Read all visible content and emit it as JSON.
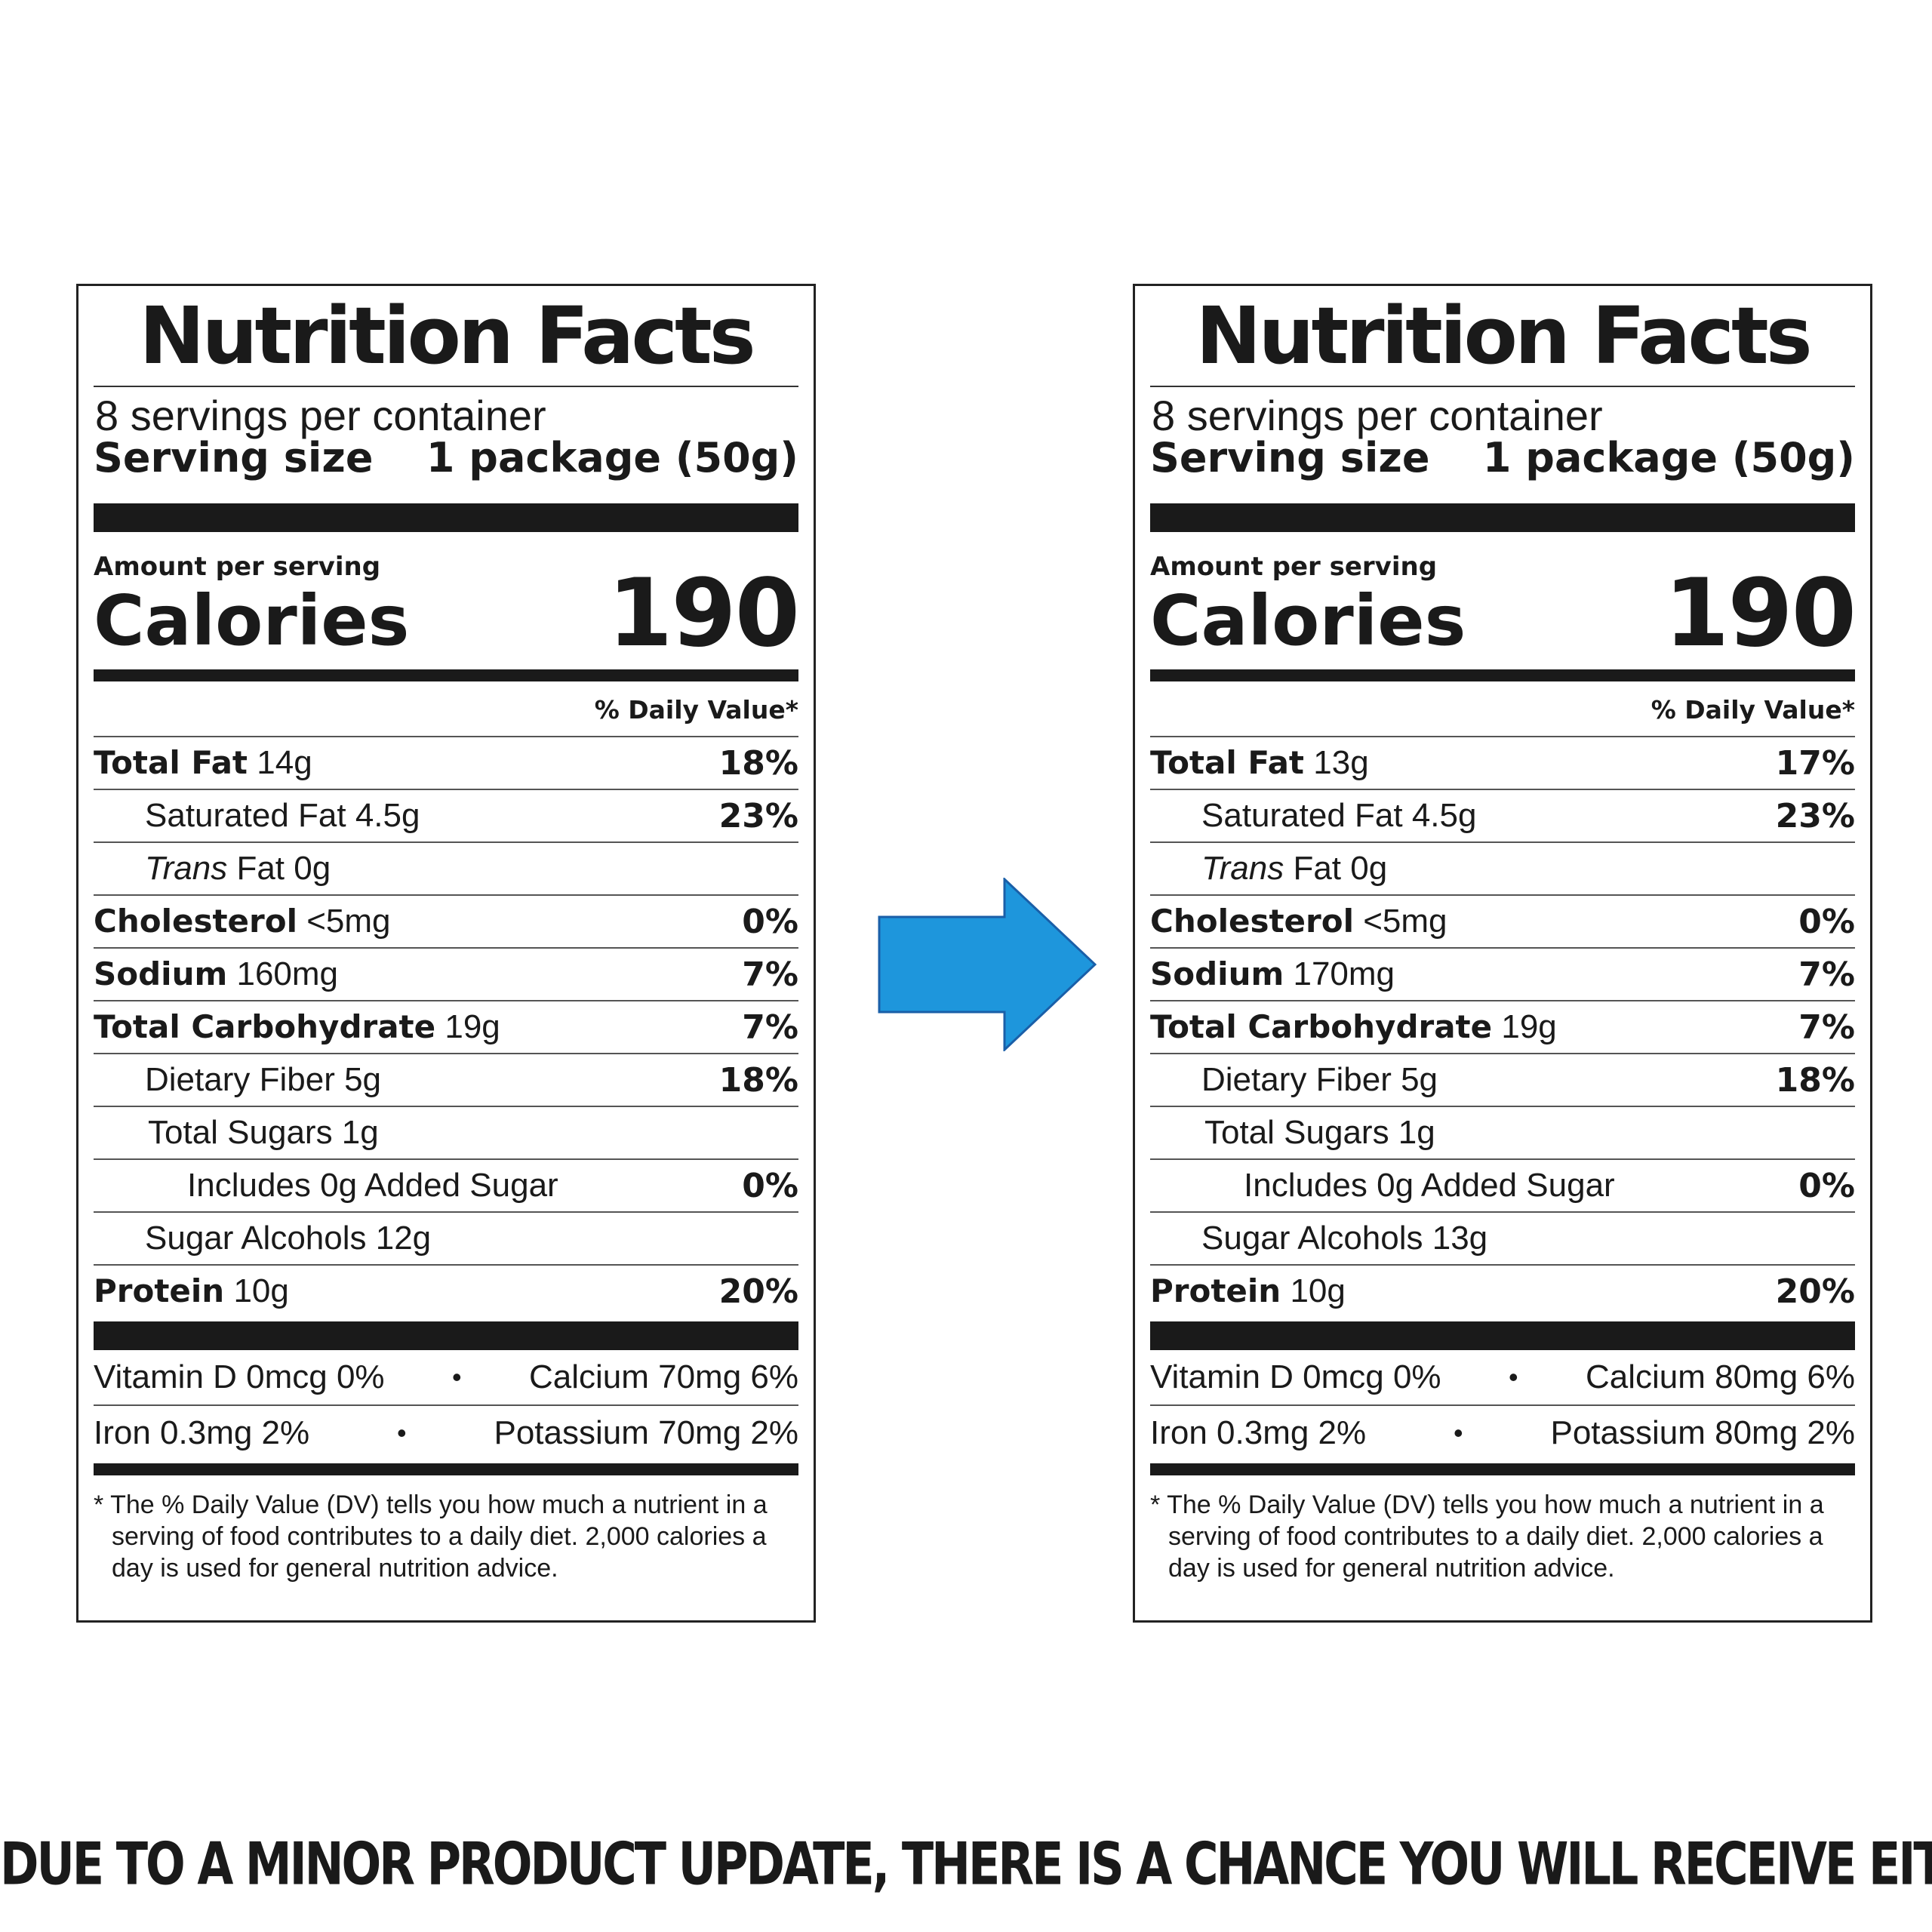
{
  "labels": [
    {
      "title": "Nutrition Facts",
      "servings_per_container": "8 servings per container",
      "serving_size_label": "Serving size",
      "serving_size_value": "1 package (50g)",
      "amount_per_serving": "Amount per serving",
      "calories_label": "Calories",
      "calories_value": "190",
      "daily_value_header": "% Daily Value*",
      "nutrients": [
        {
          "name": "Total Fat",
          "amount": "14g",
          "dv": "18%"
        },
        {
          "name": "Saturated Fat 4.5g",
          "amount": "",
          "dv": "23%"
        },
        {
          "name_italic": "Trans",
          "name": " Fat 0g",
          "amount": "",
          "dv": ""
        },
        {
          "name": "Cholesterol",
          "amount": "<5mg",
          "dv": "0%"
        },
        {
          "name": "Sodium",
          "amount": "160mg",
          "dv": "7%"
        },
        {
          "name": "Total Carbohydrate",
          "amount": "19g",
          "dv": "7%"
        },
        {
          "name": "Dietary Fiber 5g",
          "amount": "",
          "dv": "18%"
        },
        {
          "name": "Total Sugars 1g",
          "amount": "",
          "dv": ""
        },
        {
          "name": "Includes 0g Added Sugar",
          "amount": "",
          "dv": "0%"
        },
        {
          "name": "Sugar Alcohols 12g",
          "amount": "",
          "dv": ""
        },
        {
          "name": "Protein",
          "amount": "10g",
          "dv": "20%"
        }
      ],
      "vitamins": [
        {
          "left": "Vitamin D 0mcg 0%",
          "bullet": "•",
          "right": "Calcium 70mg 6%"
        },
        {
          "left": "Iron 0.3mg 2%",
          "bullet": "•",
          "right": "Potassium 70mg 2%"
        }
      ],
      "footnote": "* The % Daily Value (DV) tells you how much a nutrient in a serving of food contributes to a daily diet. 2,000 calories a day is used for general nutrition advice."
    },
    {
      "title": "Nutrition Facts",
      "servings_per_container": "8 servings per container",
      "serving_size_label": "Serving size",
      "serving_size_value": "1 package (50g)",
      "amount_per_serving": "Amount per serving",
      "calories_label": "Calories",
      "calories_value": "190",
      "daily_value_header": "% Daily Value*",
      "nutrients": [
        {
          "name": "Total Fat",
          "amount": "13g",
          "dv": "17%"
        },
        {
          "name": "Saturated Fat 4.5g",
          "amount": "",
          "dv": "23%"
        },
        {
          "name_italic": "Trans",
          "name": " Fat 0g",
          "amount": "",
          "dv": ""
        },
        {
          "name": "Cholesterol",
          "amount": "<5mg",
          "dv": "0%"
        },
        {
          "name": "Sodium",
          "amount": "170mg",
          "dv": "7%"
        },
        {
          "name": "Total Carbohydrate",
          "amount": "19g",
          "dv": "7%"
        },
        {
          "name": "Dietary Fiber 5g",
          "amount": "",
          "dv": "18%"
        },
        {
          "name": "Total Sugars 1g",
          "amount": "",
          "dv": ""
        },
        {
          "name": "Includes 0g Added Sugar",
          "amount": "",
          "dv": "0%"
        },
        {
          "name": "Sugar Alcohols 13g",
          "amount": "",
          "dv": ""
        },
        {
          "name": "Protein",
          "amount": "10g",
          "dv": "20%"
        }
      ],
      "vitamins": [
        {
          "left": "Vitamin D 0mcg 0%",
          "bullet": "•",
          "right": "Calcium 80mg 6%"
        },
        {
          "left": "Iron 0.3mg 2%",
          "bullet": "•",
          "right": "Potassium 80mg 2%"
        }
      ],
      "footnote": "* The % Daily Value (DV) tells you how much a nutrient in a serving of food contributes to a daily diet. 2,000 calories a day is used for general nutrition advice."
    }
  ],
  "arrow": {
    "icon": "right-arrow-icon",
    "fill": "#1e96dc",
    "stroke": "#1a5fa8"
  },
  "banner": "DUE TO A MINOR PRODUCT UPDATE, THERE IS A CHANCE YOU WILL RECEIVE EITHER OF THESE TWO PRODUCTS"
}
